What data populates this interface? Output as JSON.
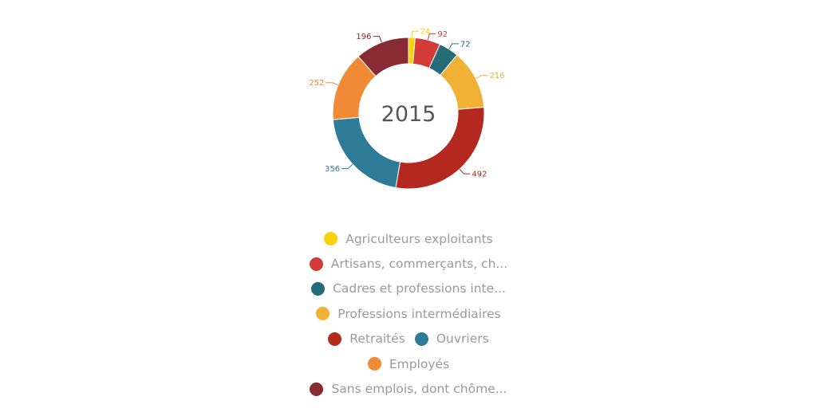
{
  "chart_data": {
    "type": "pie",
    "variant": "donut",
    "center_label": "2015",
    "categories": [
      "Agriculteurs exploitants",
      "Artisans, commerçants, chefs d'entreprise",
      "Cadres et professions intellectuelles supérieures",
      "Professions intermédiaires",
      "Retraités",
      "Ouvriers",
      "Employés",
      "Sans emplois, dont chômeurs"
    ],
    "values": [
      24,
      92,
      72,
      216,
      492,
      356,
      252,
      196
    ],
    "colors": [
      "#f8d10d",
      "#d13b38",
      "#266c78",
      "#f1b135",
      "#b3291f",
      "#2e7b98",
      "#f08a35",
      "#882b32"
    ],
    "legend_position": "bottom",
    "data_labels": true
  },
  "legend": {
    "rows": [
      [
        {
          "label": "Agriculteurs exploitants",
          "color": "#f8d10d"
        }
      ],
      [
        {
          "label": "Artisans, commerçants, ch...",
          "color": "#d13b38"
        }
      ],
      [
        {
          "label": "Cadres et professions inte...",
          "color": "#266c78"
        }
      ],
      [
        {
          "label": "Professions intermédiaires",
          "color": "#f1b135"
        }
      ],
      [
        {
          "label": "Retraités",
          "color": "#b3291f"
        },
        {
          "label": "Ouvriers",
          "color": "#2e7b98"
        }
      ],
      [
        {
          "label": "Employés",
          "color": "#f08a35"
        }
      ],
      [
        {
          "label": "Sans emplois, dont chôme...",
          "color": "#882b32"
        }
      ]
    ]
  }
}
